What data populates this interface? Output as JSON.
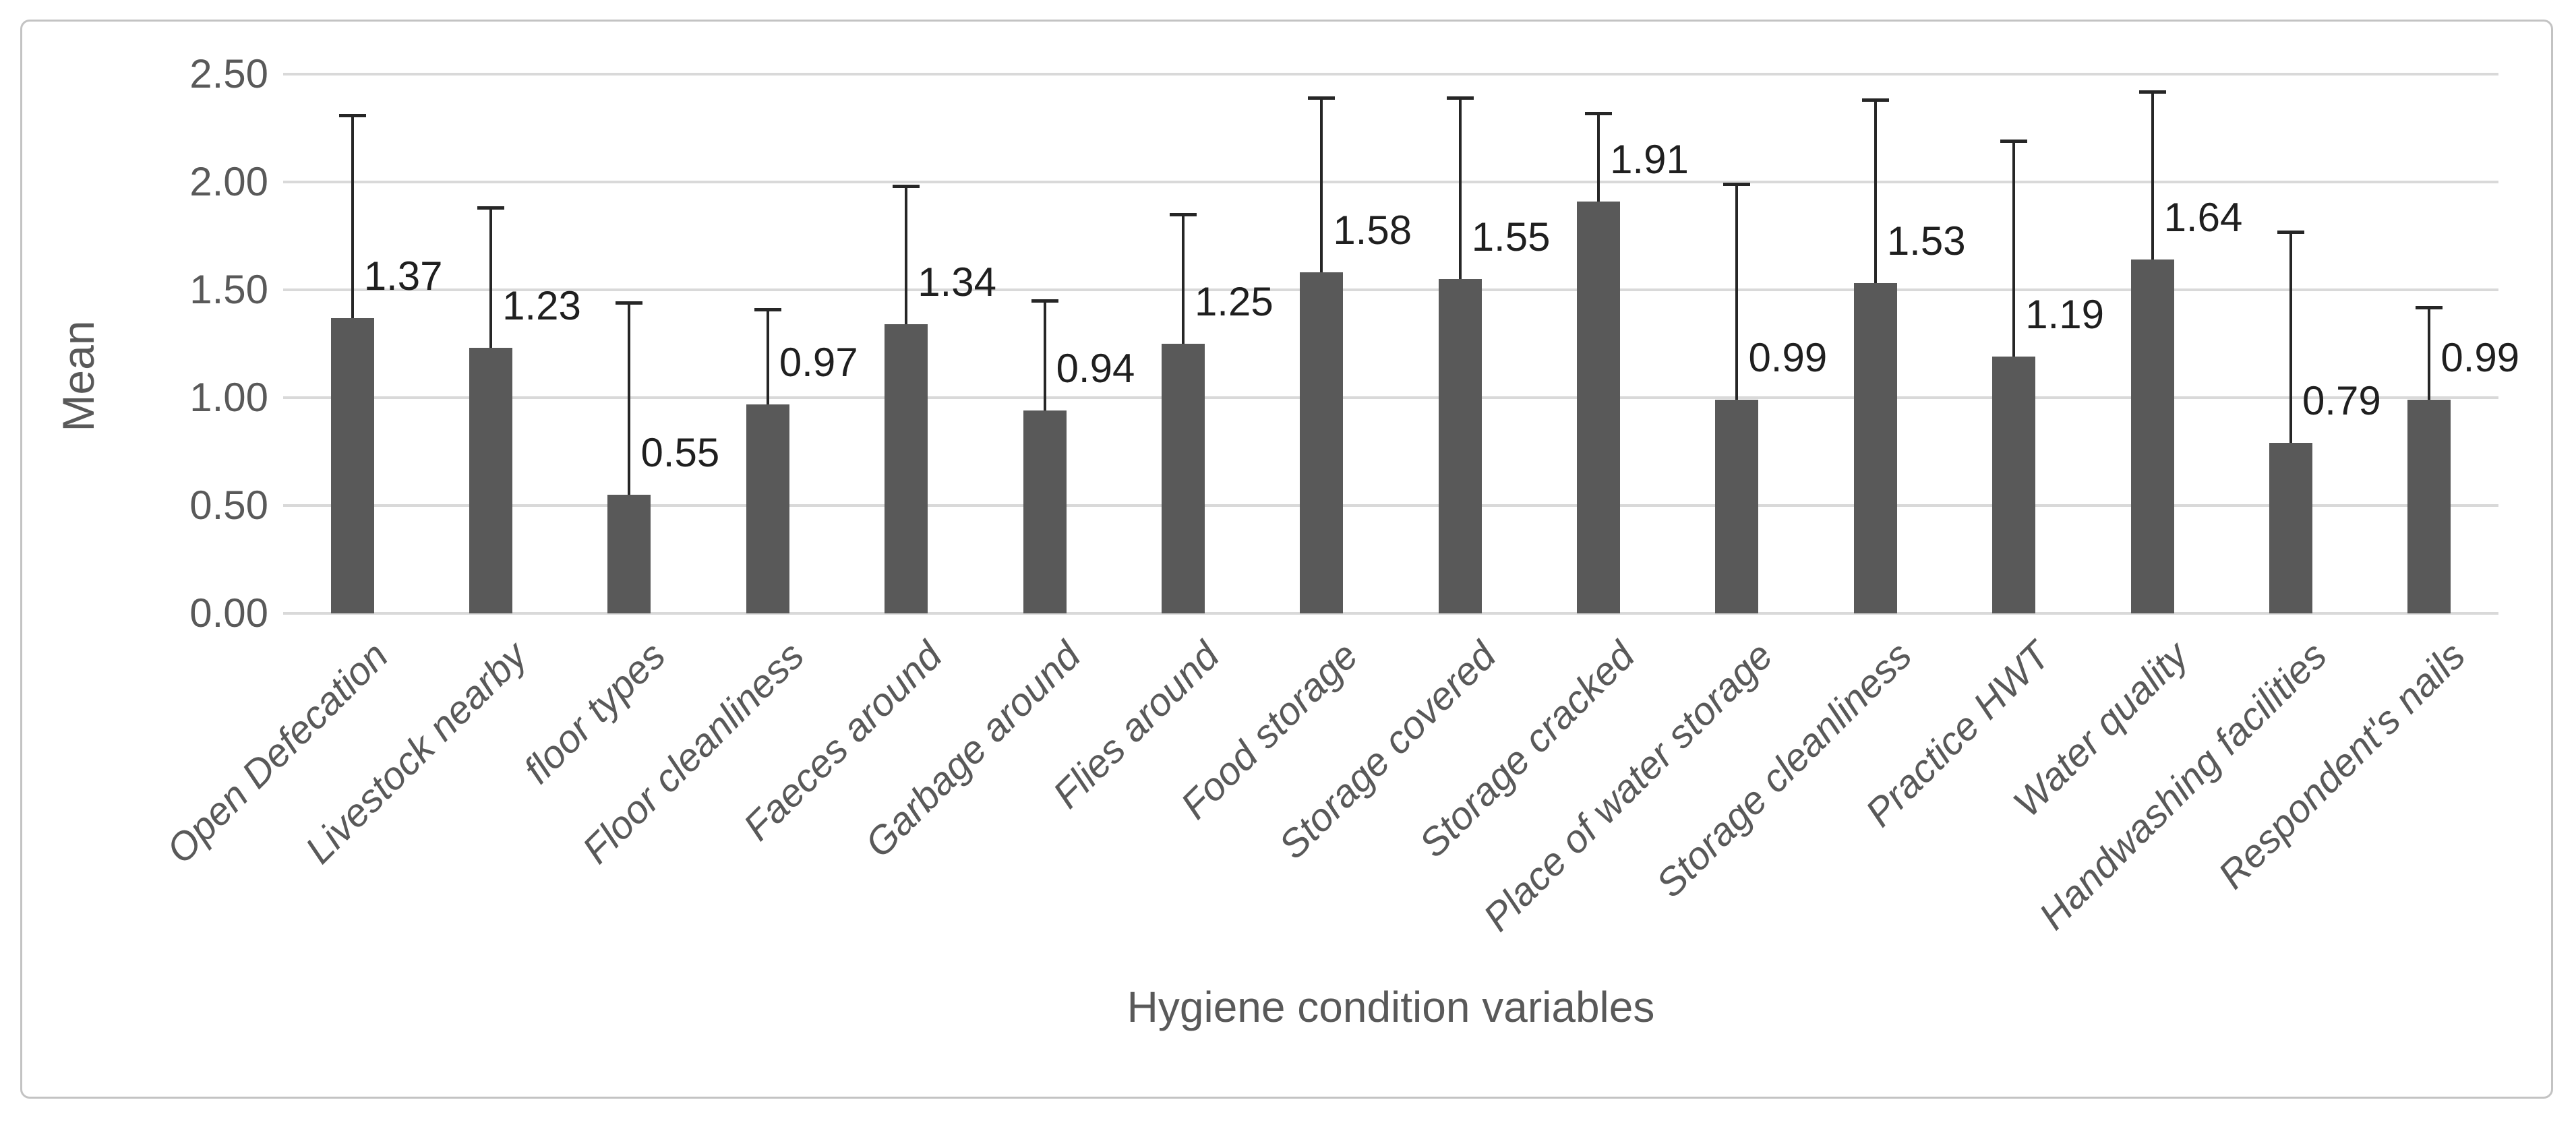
{
  "figure": {
    "y_axis_title": "Mean",
    "x_axis_title": "Hygiene condition variables"
  },
  "colors": {
    "bar_fill": "#595959",
    "gridline": "#d9d9d9",
    "error_bar": "#262626",
    "data_label_text": "#1f1f1f",
    "axis_text": "#595959",
    "frame_border": "#c3c3c3",
    "background": "#ffffff"
  },
  "chart_data": {
    "type": "bar",
    "title": "",
    "xlabel": "Hygiene condition variables",
    "ylabel": "Mean",
    "ylim": [
      0,
      2.5
    ],
    "grid": true,
    "legend": false,
    "yticks": [
      0.0,
      0.5,
      1.0,
      1.5,
      2.0,
      2.5
    ],
    "ytick_labels": [
      "0.00",
      "0.50",
      "1.00",
      "1.50",
      "2.00",
      "2.50"
    ],
    "categories": [
      "Open Defecation",
      "Livestock nearby",
      "floor types",
      "Floor cleanliness",
      "Faeces around",
      "Garbage around",
      "Flies around",
      "Food storage",
      "Storage covered",
      "Storage cracked",
      "Place of water storage",
      "Storage cleanliness",
      "Practice HWT",
      "Water quality",
      "Handwashing facilities",
      "Respondent's nails"
    ],
    "values": [
      1.37,
      1.23,
      0.55,
      0.97,
      1.34,
      0.94,
      1.25,
      1.58,
      1.55,
      1.91,
      0.99,
      1.53,
      1.19,
      1.64,
      0.79,
      0.99
    ],
    "value_labels": [
      "1.37",
      "1.23",
      "0.55",
      "0.97",
      "1.34",
      "0.94",
      "1.25",
      "1.58",
      "1.55",
      "1.91",
      "0.99",
      "1.53",
      "1.19",
      "1.64",
      "0.79",
      "0.99"
    ],
    "error_bar_upper_tops": [
      2.31,
      1.88,
      1.44,
      1.41,
      1.98,
      1.45,
      1.85,
      2.39,
      2.39,
      2.32,
      1.99,
      2.38,
      2.19,
      2.42,
      1.77,
      1.42
    ]
  }
}
